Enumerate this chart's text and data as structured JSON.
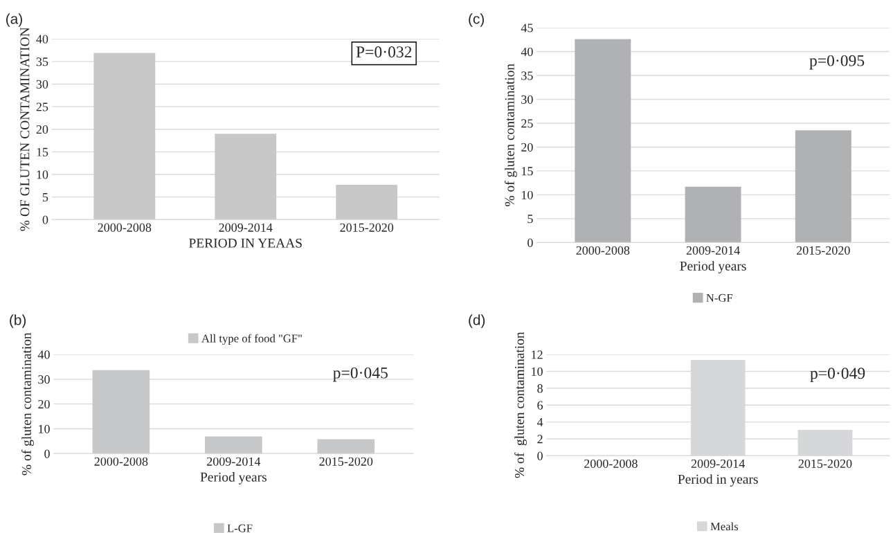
{
  "chart_data": [
    {
      "type": "bar",
      "title": "(a)",
      "categories": [
        "2000-2008",
        "2009-2014",
        "2015-2020"
      ],
      "xlabel": "PERIOD IN YEAAS",
      "ylabel": "% OF GLUTEN CONTAMINATION",
      "series": [
        {
          "name": "All type of food \"GF\"",
          "color": "#c8c8c8",
          "values": [
            36.8,
            18.9,
            7.6
          ]
        }
      ],
      "ylim": [
        0,
        40
      ],
      "yticks": [
        0,
        5,
        10,
        15,
        20,
        25,
        30,
        35,
        40
      ],
      "grid": "y",
      "legend": "bottom",
      "annotations": [
        "P=0·032"
      ]
    },
    {
      "type": "bar",
      "title": "(c)",
      "categories": [
        "2000-2008",
        "2009-2014",
        "2015-2020"
      ],
      "xlabel": "Period years",
      "ylabel": "% of gluten contamination",
      "series": [
        {
          "name": "N-GF",
          "color": "#b0b1b3",
          "values": [
            42.5,
            11.6,
            23.4
          ]
        }
      ],
      "ylim": [
        0,
        45
      ],
      "yticks": [
        0,
        5,
        10,
        15,
        20,
        25,
        30,
        35,
        40,
        45
      ],
      "grid": "y",
      "legend": "bottom",
      "annotations": [
        "p=0·095"
      ]
    },
    {
      "type": "bar",
      "title": "(b)",
      "categories": [
        "2000-2008",
        "2009-2014",
        "2015-2020"
      ],
      "xlabel": "Period years",
      "ylabel": "% of gluten contamination",
      "series": [
        {
          "name": "L-GF",
          "color": "#c6c7c9",
          "values": [
            33.5,
            6.7,
            5.6
          ]
        }
      ],
      "ylim": [
        0,
        40
      ],
      "yticks": [
        0,
        10,
        20,
        30,
        40
      ],
      "grid": "y",
      "legend": "bottom",
      "annotations": [
        "p=0·045"
      ]
    },
    {
      "type": "bar",
      "title": "(d)",
      "categories": [
        "2000-2008",
        "2009-2014",
        "2015-2020"
      ],
      "xlabel": "Period in years",
      "ylabel": "% of  gluten contamination",
      "series": [
        {
          "name": "Meals",
          "color": "#d6d7d9",
          "values": [
            0,
            11.3,
            3.0
          ]
        }
      ],
      "ylim": [
        0,
        12
      ],
      "yticks": [
        0,
        2,
        4,
        6,
        8,
        10,
        12
      ],
      "grid": "y",
      "legend": "bottom",
      "annotations": [
        "p=0·049"
      ]
    }
  ]
}
